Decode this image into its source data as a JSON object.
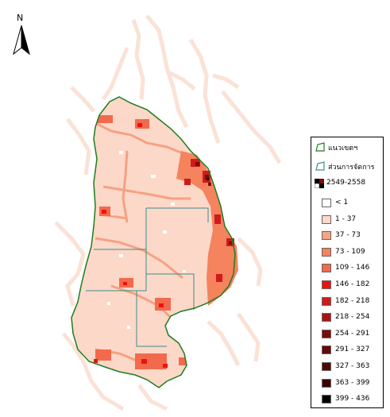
{
  "north_arrow": {
    "letter": "N"
  },
  "legend": {
    "boundary_label": "แนวเขตฯ",
    "district_label": "ส่วนการจัดการ",
    "year_label": "2549-2558",
    "classes": [
      {
        "label": "< 1",
        "color": "#ffffff"
      },
      {
        "label": "1 - 37",
        "color": "#fcd8c8"
      },
      {
        "label": "37 - 73",
        "color": "#f7a384"
      },
      {
        "label": "73 - 109",
        "color": "#f4835e"
      },
      {
        "label": "109 - 146",
        "color": "#f26a4d"
      },
      {
        "label": "146 - 182",
        "color": "#f01010"
      },
      {
        "label": "182 - 218",
        "color": "#d11a1a"
      },
      {
        "label": "218 - 254",
        "color": "#a81414"
      },
      {
        "label": "254 - 291",
        "color": "#7a0c0c"
      },
      {
        "label": "291 - 327",
        "color": "#650909"
      },
      {
        "label": "327 - 363",
        "color": "#520606"
      },
      {
        "label": "363 - 399",
        "color": "#3a0303"
      },
      {
        "label": "399 - 436",
        "color": "#000000"
      }
    ]
  },
  "colors": {
    "boundary": "#1e7d1e",
    "district": "#3c8c8c",
    "background_density": "#fcd8c8"
  }
}
